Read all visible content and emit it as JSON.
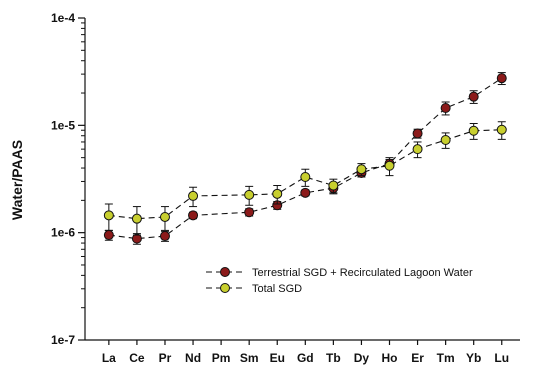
{
  "chart_data": {
    "type": "line",
    "ylabel": "Water/PAAS",
    "yscale": "log",
    "ylim": [
      1e-07,
      0.0001
    ],
    "y_tick_labels": [
      "1e-7",
      "1e-6",
      "1e-5",
      "1e-4"
    ],
    "categories": [
      "La",
      "Ce",
      "Pr",
      "Nd",
      "Pm",
      "Sm",
      "Eu",
      "Gd",
      "Tb",
      "Dy",
      "Ho",
      "Er",
      "Tm",
      "Yb",
      "Lu"
    ],
    "grid": false,
    "legend_position": "lower-right",
    "series": [
      {
        "name": "Terrestrial SGD + Recirculated Lagoon Water",
        "color": "#8b1a1a",
        "marker": "circle",
        "line_style": "dashed",
        "values": [
          9.5e-07,
          8.8e-07,
          9.3e-07,
          1.45e-06,
          null,
          1.55e-06,
          1.8e-06,
          2.35e-06,
          2.6e-06,
          3.6e-06,
          4.4e-06,
          8.4e-06,
          1.45e-05,
          1.85e-05,
          2.75e-05
        ],
        "errors": [
          1e-07,
          1e-07,
          1e-07,
          1e-07,
          null,
          1.2e-07,
          1.5e-07,
          1.5e-07,
          3e-07,
          3e-07,
          4e-07,
          8e-07,
          2e-06,
          2.5e-06,
          3.5e-06
        ]
      },
      {
        "name": "Total SGD",
        "color": "#c8cf2f",
        "marker": "circle",
        "line_style": "dashed",
        "values": [
          1.45e-06,
          1.35e-06,
          1.4e-06,
          2.2e-06,
          null,
          2.25e-06,
          2.3e-06,
          3.3e-06,
          2.75e-06,
          3.9e-06,
          4.2e-06,
          6e-06,
          7.3e-06,
          8.9e-06,
          9.1e-06
        ],
        "errors": [
          4e-07,
          4e-07,
          3.5e-07,
          4.5e-07,
          null,
          4.5e-07,
          4.5e-07,
          6e-07,
          4e-07,
          5e-07,
          8e-07,
          1e-06,
          1.2e-06,
          1.5e-06,
          1.7e-06
        ]
      }
    ]
  }
}
